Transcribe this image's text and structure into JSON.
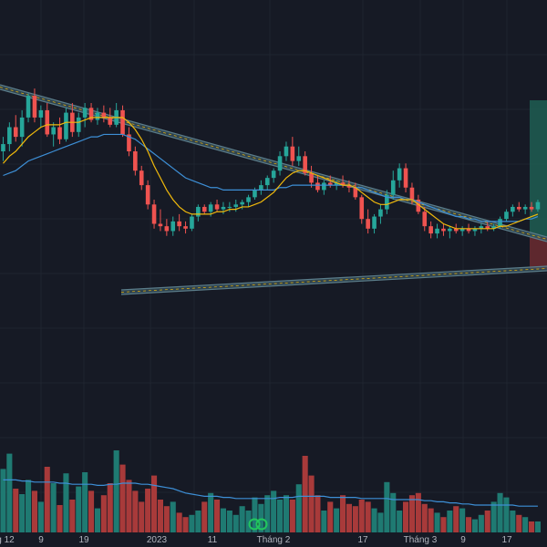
{
  "colors": {
    "background": "#161a25",
    "grid": "#1f2430",
    "up": "#26a69a",
    "down": "#ef5350",
    "volume_up": "#1f7a72",
    "volume_down": "#a83a3a",
    "ma_fast": "#f0b90b",
    "ma_slow": "#3d8fd6",
    "volume_ma": "#3d8fd6",
    "trendline": "#5b7d8a",
    "trendline_fill": "#3b5560",
    "projection_zone": "#1e5e52",
    "projection_zone_red": "#6b2b30",
    "text": "#b2b5be"
  },
  "icons": [
    "trading-view-logo-icon"
  ],
  "chart_data": {
    "type": "candlestick",
    "grid": true,
    "x_axis_labels": [
      "g 12",
      "9",
      "19",
      "2023",
      "11",
      "Tháng 2",
      "17",
      "Tháng 3",
      "9",
      "17"
    ],
    "price_ylim": [
      0,
      100
    ],
    "volume_ylim": [
      0,
      100
    ],
    "candles": [
      {
        "o": 60,
        "h": 66,
        "l": 56,
        "c": 63
      },
      {
        "o": 63,
        "h": 72,
        "l": 60,
        "c": 70
      },
      {
        "o": 70,
        "h": 75,
        "l": 64,
        "c": 66
      },
      {
        "o": 66,
        "h": 77,
        "l": 62,
        "c": 74
      },
      {
        "o": 74,
        "h": 84,
        "l": 72,
        "c": 83
      },
      {
        "o": 83,
        "h": 86,
        "l": 72,
        "c": 74
      },
      {
        "o": 74,
        "h": 79,
        "l": 70,
        "c": 77
      },
      {
        "o": 77,
        "h": 80,
        "l": 66,
        "c": 67
      },
      {
        "o": 67,
        "h": 72,
        "l": 62,
        "c": 70
      },
      {
        "o": 70,
        "h": 74,
        "l": 63,
        "c": 65
      },
      {
        "o": 65,
        "h": 78,
        "l": 64,
        "c": 76
      },
      {
        "o": 76,
        "h": 80,
        "l": 66,
        "c": 68
      },
      {
        "o": 68,
        "h": 76,
        "l": 66,
        "c": 74
      },
      {
        "o": 74,
        "h": 80,
        "l": 70,
        "c": 78
      },
      {
        "o": 78,
        "h": 80,
        "l": 72,
        "c": 73
      },
      {
        "o": 73,
        "h": 78,
        "l": 71,
        "c": 76
      },
      {
        "o": 76,
        "h": 79,
        "l": 72,
        "c": 74
      },
      {
        "o": 74,
        "h": 78,
        "l": 70,
        "c": 71
      },
      {
        "o": 71,
        "h": 80,
        "l": 70,
        "c": 77
      },
      {
        "o": 77,
        "h": 79,
        "l": 66,
        "c": 67
      },
      {
        "o": 67,
        "h": 70,
        "l": 58,
        "c": 60
      },
      {
        "o": 60,
        "h": 62,
        "l": 50,
        "c": 52
      },
      {
        "o": 52,
        "h": 54,
        "l": 44,
        "c": 46
      },
      {
        "o": 46,
        "h": 48,
        "l": 36,
        "c": 38
      },
      {
        "o": 38,
        "h": 40,
        "l": 28,
        "c": 30
      },
      {
        "o": 30,
        "h": 36,
        "l": 27,
        "c": 29
      },
      {
        "o": 29,
        "h": 32,
        "l": 25,
        "c": 27
      },
      {
        "o": 27,
        "h": 33,
        "l": 25,
        "c": 31
      },
      {
        "o": 31,
        "h": 34,
        "l": 27,
        "c": 29
      },
      {
        "o": 29,
        "h": 31,
        "l": 26,
        "c": 28
      },
      {
        "o": 28,
        "h": 34,
        "l": 27,
        "c": 33
      },
      {
        "o": 33,
        "h": 38,
        "l": 31,
        "c": 37
      },
      {
        "o": 37,
        "h": 38,
        "l": 34,
        "c": 35
      },
      {
        "o": 35,
        "h": 39,
        "l": 33,
        "c": 38
      },
      {
        "o": 38,
        "h": 40,
        "l": 35,
        "c": 36
      },
      {
        "o": 36,
        "h": 39,
        "l": 34,
        "c": 37
      },
      {
        "o": 37,
        "h": 39,
        "l": 35,
        "c": 37
      },
      {
        "o": 37,
        "h": 40,
        "l": 35,
        "c": 38
      },
      {
        "o": 38,
        "h": 40,
        "l": 36,
        "c": 39
      },
      {
        "o": 39,
        "h": 42,
        "l": 37,
        "c": 41
      },
      {
        "o": 41,
        "h": 45,
        "l": 40,
        "c": 44
      },
      {
        "o": 44,
        "h": 48,
        "l": 42,
        "c": 46
      },
      {
        "o": 46,
        "h": 50,
        "l": 44,
        "c": 49
      },
      {
        "o": 49,
        "h": 53,
        "l": 47,
        "c": 52
      },
      {
        "o": 52,
        "h": 60,
        "l": 50,
        "c": 58
      },
      {
        "o": 58,
        "h": 64,
        "l": 56,
        "c": 62
      },
      {
        "o": 62,
        "h": 66,
        "l": 54,
        "c": 56
      },
      {
        "o": 56,
        "h": 62,
        "l": 54,
        "c": 58
      },
      {
        "o": 58,
        "h": 60,
        "l": 50,
        "c": 51
      },
      {
        "o": 51,
        "h": 54,
        "l": 45,
        "c": 47
      },
      {
        "o": 47,
        "h": 50,
        "l": 43,
        "c": 44
      },
      {
        "o": 44,
        "h": 48,
        "l": 42,
        "c": 47
      },
      {
        "o": 47,
        "h": 50,
        "l": 45,
        "c": 46
      },
      {
        "o": 46,
        "h": 48,
        "l": 44,
        "c": 47
      },
      {
        "o": 47,
        "h": 50,
        "l": 45,
        "c": 46
      },
      {
        "o": 46,
        "h": 48,
        "l": 43,
        "c": 45
      },
      {
        "o": 45,
        "h": 47,
        "l": 40,
        "c": 41
      },
      {
        "o": 41,
        "h": 42,
        "l": 30,
        "c": 32
      },
      {
        "o": 32,
        "h": 36,
        "l": 26,
        "c": 28
      },
      {
        "o": 28,
        "h": 34,
        "l": 26,
        "c": 33
      },
      {
        "o": 33,
        "h": 38,
        "l": 30,
        "c": 36
      },
      {
        "o": 36,
        "h": 44,
        "l": 34,
        "c": 42
      },
      {
        "o": 42,
        "h": 52,
        "l": 40,
        "c": 48
      },
      {
        "o": 48,
        "h": 55,
        "l": 45,
        "c": 53
      },
      {
        "o": 53,
        "h": 55,
        "l": 43,
        "c": 45
      },
      {
        "o": 45,
        "h": 47,
        "l": 38,
        "c": 40
      },
      {
        "o": 40,
        "h": 42,
        "l": 34,
        "c": 35
      },
      {
        "o": 35,
        "h": 37,
        "l": 27,
        "c": 29
      },
      {
        "o": 29,
        "h": 31,
        "l": 24,
        "c": 26
      },
      {
        "o": 26,
        "h": 30,
        "l": 24,
        "c": 28
      },
      {
        "o": 28,
        "h": 30,
        "l": 25,
        "c": 27
      },
      {
        "o": 27,
        "h": 29,
        "l": 24,
        "c": 28
      },
      {
        "o": 28,
        "h": 30,
        "l": 26,
        "c": 27
      },
      {
        "o": 27,
        "h": 29,
        "l": 25,
        "c": 28
      },
      {
        "o": 28,
        "h": 30,
        "l": 26,
        "c": 27
      },
      {
        "o": 27,
        "h": 29,
        "l": 25,
        "c": 28
      },
      {
        "o": 28,
        "h": 30,
        "l": 26,
        "c": 29
      },
      {
        "o": 29,
        "h": 31,
        "l": 27,
        "c": 28
      },
      {
        "o": 28,
        "h": 30,
        "l": 27,
        "c": 29
      },
      {
        "o": 29,
        "h": 33,
        "l": 28,
        "c": 32
      },
      {
        "o": 32,
        "h": 36,
        "l": 31,
        "c": 35
      },
      {
        "o": 35,
        "h": 38,
        "l": 33,
        "c": 37
      },
      {
        "o": 37,
        "h": 39,
        "l": 35,
        "c": 36
      },
      {
        "o": 36,
        "h": 38,
        "l": 34,
        "c": 37
      },
      {
        "o": 37,
        "h": 39,
        "l": 35,
        "c": 36
      },
      {
        "o": 36,
        "h": 40,
        "l": 35,
        "c": 39
      }
    ],
    "volume": [
      58,
      72,
      40,
      35,
      48,
      38,
      28,
      60,
      45,
      25,
      54,
      30,
      42,
      55,
      38,
      22,
      34,
      45,
      75,
      62,
      48,
      38,
      28,
      40,
      52,
      30,
      24,
      28,
      18,
      14,
      16,
      20,
      28,
      36,
      30,
      22,
      20,
      16,
      24,
      20,
      32,
      26,
      34,
      38,
      30,
      34,
      30,
      44,
      70,
      52,
      34,
      20,
      28,
      22,
      34,
      26,
      24,
      30,
      28,
      22,
      18,
      46,
      36,
      20,
      28,
      34,
      36,
      26,
      22,
      18,
      14,
      20,
      24,
      22,
      14,
      12,
      16,
      20,
      28,
      36,
      32,
      20,
      16,
      14,
      10,
      10
    ],
    "ma_fast": [
      55,
      58,
      60,
      63,
      66,
      68,
      70,
      71,
      71,
      71,
      72,
      72,
      72,
      73,
      74,
      74,
      74,
      74,
      74,
      74,
      72,
      69,
      65,
      60,
      54,
      49,
      44,
      40,
      37,
      35,
      34,
      34,
      34,
      34,
      35,
      35,
      36,
      36,
      37,
      37,
      38,
      39,
      41,
      43,
      46,
      49,
      51,
      52,
      52,
      51,
      50,
      49,
      48,
      47,
      46,
      46,
      45,
      43,
      41,
      39,
      38,
      38,
      39,
      40,
      40,
      40,
      38,
      36,
      34,
      32,
      30,
      29,
      28,
      28,
      28,
      28,
      28,
      28,
      28,
      29,
      29,
      30,
      31,
      32,
      33,
      34
    ],
    "ma_slow": [
      50,
      51,
      52,
      54,
      56,
      57,
      58,
      59,
      60,
      61,
      62,
      63,
      64,
      65,
      66,
      66,
      67,
      67,
      67,
      67,
      66,
      65,
      63,
      61,
      59,
      57,
      55,
      53,
      51,
      49,
      48,
      47,
      46,
      45,
      45,
      44,
      44,
      44,
      44,
      44,
      44,
      44,
      44,
      44,
      45,
      45,
      46,
      46,
      46,
      46,
      46,
      46,
      46,
      46,
      46,
      46,
      45,
      45,
      44,
      43,
      42,
      41,
      41,
      41,
      40,
      40,
      39,
      38,
      37,
      36,
      35,
      34,
      33,
      33,
      32,
      32,
      31,
      31,
      31,
      31,
      31,
      31,
      31,
      32,
      32,
      33
    ],
    "volume_ma": [
      48,
      48,
      48,
      47,
      47,
      46,
      46,
      46,
      46,
      45,
      45,
      44,
      44,
      44,
      44,
      43,
      43,
      44,
      44,
      45,
      45,
      45,
      44,
      44,
      43,
      42,
      41,
      40,
      38,
      36,
      35,
      34,
      33,
      33,
      33,
      32,
      32,
      31,
      31,
      31,
      31,
      31,
      31,
      31,
      32,
      32,
      32,
      33,
      33,
      33,
      33,
      33,
      32,
      32,
      32,
      32,
      32,
      31,
      31,
      31,
      31,
      31,
      30,
      30,
      30,
      30,
      30,
      29,
      29,
      28,
      28,
      27,
      27,
      26,
      26,
      25,
      25,
      25,
      25,
      25,
      25,
      25,
      24,
      24,
      24,
      24
    ]
  }
}
